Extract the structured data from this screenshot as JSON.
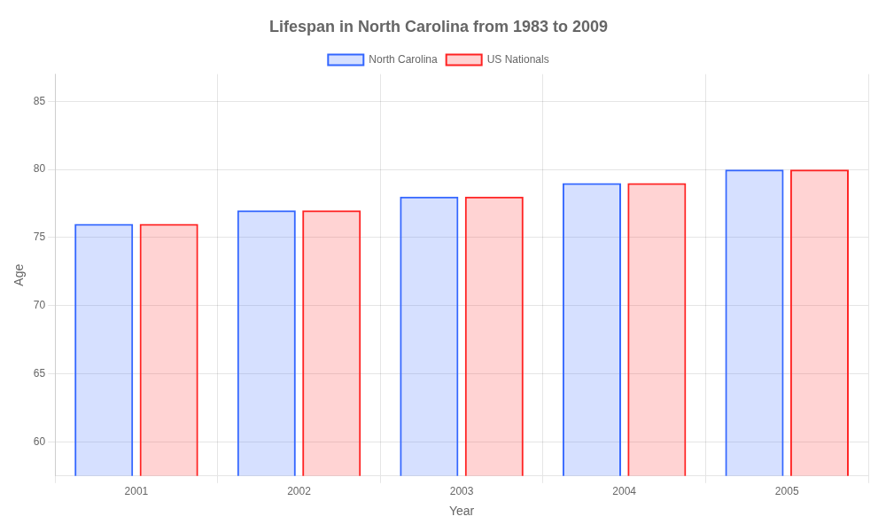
{
  "chart_data": {
    "type": "bar",
    "title": "Lifespan in North Carolina from 1983 to 2009",
    "xlabel": "Year",
    "ylabel": "Age",
    "categories": [
      "2001",
      "2002",
      "2003",
      "2004",
      "2005"
    ],
    "series": [
      {
        "name": "North Carolina",
        "color": "#3366ff",
        "values": [
          76,
          77,
          78,
          79,
          80
        ]
      },
      {
        "name": "US Nationals",
        "color": "#ff2222",
        "values": [
          76,
          77,
          78,
          79,
          80
        ]
      }
    ],
    "ylim": [
      57.5,
      87
    ],
    "yticks": [
      60,
      65,
      70,
      75,
      80,
      85
    ],
    "grid": true,
    "legend": "top"
  }
}
